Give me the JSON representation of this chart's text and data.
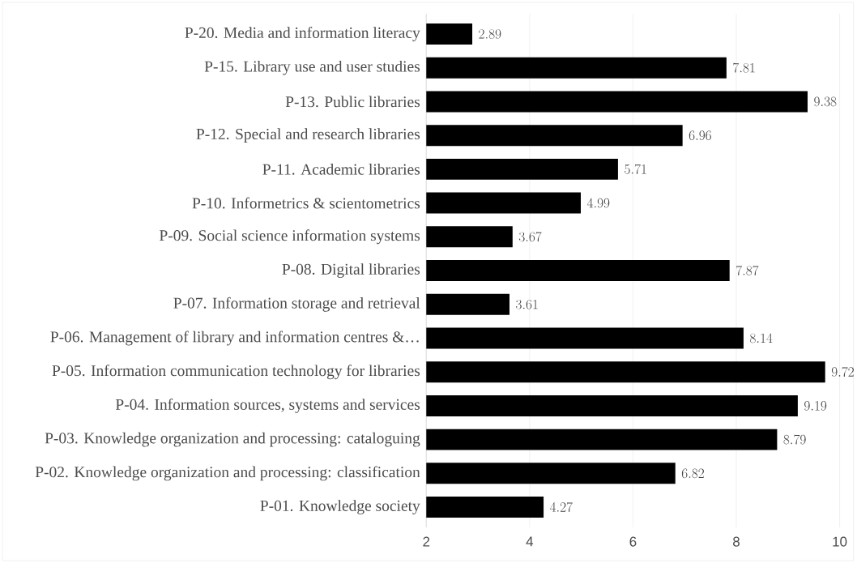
{
  "chart_data": {
    "type": "bar",
    "orientation": "horizontal",
    "categories": [
      "P-20. Media and information literacy",
      "P-15. Library use and user studies",
      "P-13. Public libraries",
      "P-12. Special and research libraries",
      "P-11. Academic libraries",
      "P-10. Informetrics & scientometrics",
      "P-09. Social science information systems",
      "P-08. Digital libraries",
      "P-07. Information storage and retrieval",
      "P-06. Management of library and information centres &…",
      "P-05. Information communication technology for libraries",
      "P-04. Information sources, systems and services",
      "P-03. Knowledge organization and processing: cataloguing",
      "P-02. Knowledge organization and processing: classification",
      "P-01. Knowledge society"
    ],
    "values": [
      2.89,
      7.81,
      9.38,
      6.96,
      5.71,
      4.99,
      3.67,
      7.87,
      3.61,
      8.14,
      9.72,
      9.19,
      8.79,
      6.82,
      4.27
    ],
    "color": "#000000",
    "data_labels": true,
    "xlim": [
      2,
      10
    ],
    "xticks": [
      2,
      4,
      6,
      8,
      10
    ],
    "grid": "x",
    "legend": false
  }
}
